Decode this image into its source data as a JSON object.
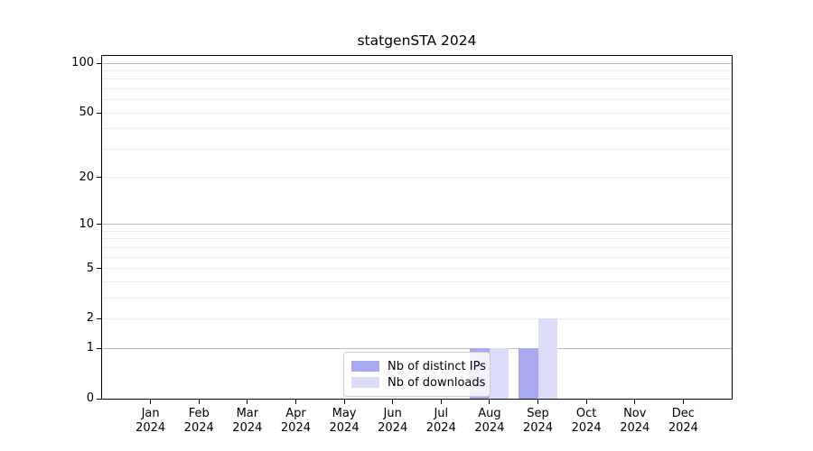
{
  "chart_data": {
    "type": "bar",
    "title": "statgenSTA 2024",
    "categories": [
      "Jan",
      "Feb",
      "Mar",
      "Apr",
      "May",
      "Jun",
      "Jul",
      "Aug",
      "Sep",
      "Oct",
      "Nov",
      "Dec"
    ],
    "category_year": "2024",
    "series": [
      {
        "name": "Nb of distinct IPs",
        "color": "#a9a9f0",
        "values": [
          0,
          0,
          0,
          0,
          0,
          0,
          0,
          1,
          1,
          0,
          0,
          0
        ]
      },
      {
        "name": "Nb of downloads",
        "color": "#dcdcf8",
        "values": [
          0,
          0,
          0,
          0,
          0,
          0,
          0,
          1,
          2,
          0,
          0,
          0
        ]
      }
    ],
    "xlabel": "",
    "ylabel": "",
    "y_axis": {
      "scale": "log1p",
      "tick_values": [
        0,
        1,
        2,
        5,
        10,
        20,
        50,
        100
      ],
      "major_gridlines": [
        1,
        10,
        100
      ],
      "minor_gridlines": [
        2,
        3,
        4,
        5,
        6,
        7,
        8,
        9,
        20,
        30,
        40,
        50,
        60,
        70,
        80,
        90
      ],
      "ylim": [
        0,
        110
      ]
    },
    "grid": true,
    "legend_position": "lower center"
  },
  "colors": {
    "background": "#ffffff",
    "axis": "#000000",
    "major_grid": "#b9b9b9",
    "minor_grid": "#ececec",
    "legend_border": "#cccccc"
  }
}
